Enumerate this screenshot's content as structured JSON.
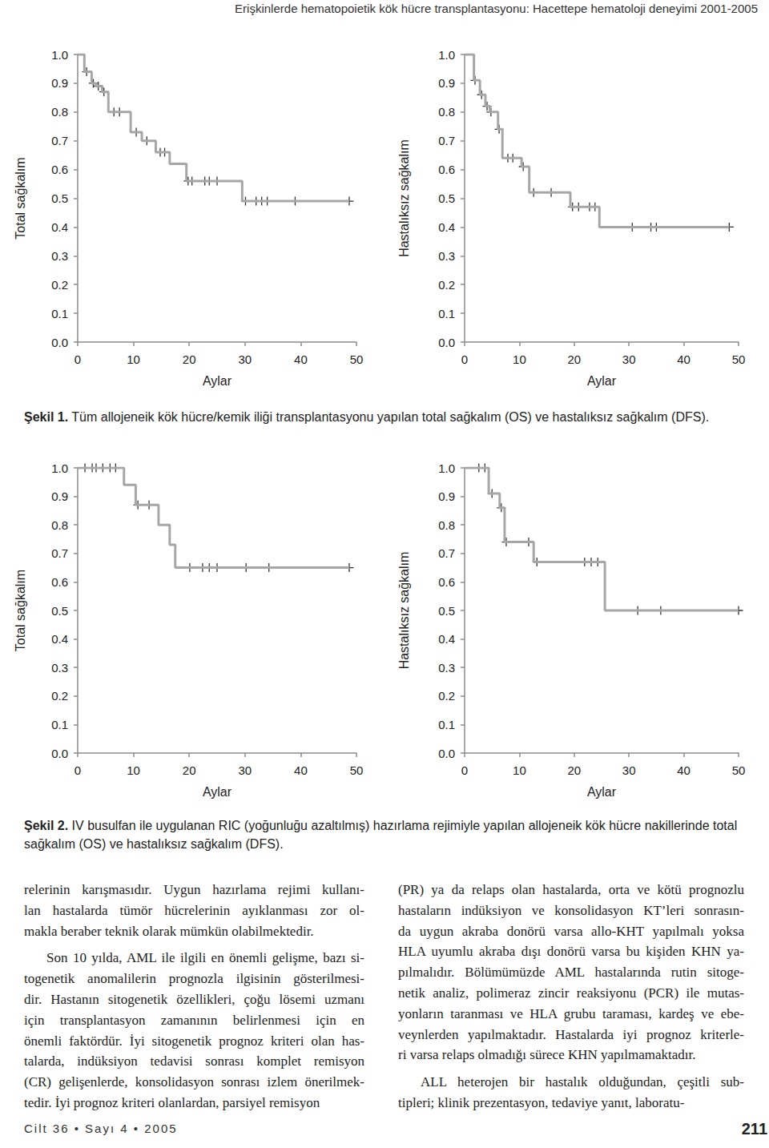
{
  "header": "Erişkinlerde hematopoietik kök hücre transplantasyonu: Hacettepe hematoloji deneyimi 2001-2005",
  "chart_data": [
    {
      "type": "step",
      "ylabel": "Total sağkalım",
      "xlabel": "Aylar",
      "xlim": [
        0,
        50
      ],
      "xticks": [
        0,
        10,
        20,
        30,
        40,
        50
      ],
      "ylim": [
        0,
        1
      ],
      "yticks": [
        {
          "value": 0,
          "label": "0.0"
        },
        0.1,
        0.2,
        0.3,
        0.4,
        0.5,
        0.6,
        0.7,
        0.8,
        0.9,
        {
          "value": 1,
          "label": "1.0"
        }
      ],
      "grid": false,
      "series": [
        {
          "type": "line",
          "marker": "none",
          "line_style": "solid",
          "color": "#a6a6a6",
          "x": [
            0,
            1.2,
            2.5,
            3.3,
            4.4,
            5.5,
            9.5,
            11.5,
            14,
            16.5,
            19.5,
            29.5,
            48.7
          ],
          "values": [
            1,
            0.94,
            0.9,
            0.89,
            0.87,
            0.8,
            0.73,
            0.7,
            0.66,
            0.62,
            0.56,
            0.49,
            0.49
          ]
        },
        {
          "type": "scatter",
          "marker": "plus",
          "color": "#000000",
          "x": [
            1.6,
            2.8,
            3.7,
            4.7,
            6.5,
            7.5,
            10.5,
            12.4,
            14.8,
            15.6,
            19.8,
            20.5,
            22.8,
            23.6,
            25,
            30.1,
            32,
            33,
            34,
            39,
            48.7
          ],
          "values": [
            0.94,
            0.9,
            0.89,
            0.87,
            0.8,
            0.8,
            0.73,
            0.7,
            0.66,
            0.66,
            0.56,
            0.56,
            0.56,
            0.56,
            0.56,
            0.49,
            0.49,
            0.49,
            0.49,
            0.49,
            0.49
          ]
        }
      ]
    },
    {
      "type": "step",
      "ylabel": "Hastalıksız sağkalım",
      "xlabel": "Aylar",
      "xlim": [
        0,
        50
      ],
      "xticks": [
        0,
        10,
        20,
        30,
        40,
        50
      ],
      "ylim": [
        0,
        1
      ],
      "yticks": [
        {
          "value": 0,
          "label": "0.0"
        },
        0.1,
        0.2,
        0.3,
        0.4,
        0.5,
        0.6,
        0.7,
        0.8,
        0.9,
        {
          "value": 1,
          "label": "1.0"
        }
      ],
      "grid": false,
      "series": [
        {
          "type": "line",
          "marker": "none",
          "line_style": "solid",
          "color": "#a6a6a6",
          "x": [
            0,
            1.7,
            2.8,
            3.8,
            4.6,
            6.1,
            6.9,
            10.4,
            11.8,
            19.3,
            24.6,
            48.3
          ],
          "values": [
            1,
            0.91,
            0.86,
            0.82,
            0.8,
            0.74,
            0.64,
            0.61,
            0.52,
            0.47,
            0.4,
            0.4
          ]
        },
        {
          "type": "scatter",
          "marker": "plus",
          "color": "#000000",
          "x": [
            1.9,
            3.1,
            4.1,
            4.8,
            6.3,
            7.9,
            8.8,
            10.7,
            12.6,
            15.8,
            19.7,
            20.8,
            22.8,
            23.8,
            30.6,
            34,
            35,
            48.3
          ],
          "values": [
            0.91,
            0.86,
            0.82,
            0.8,
            0.74,
            0.64,
            0.64,
            0.61,
            0.52,
            0.52,
            0.47,
            0.47,
            0.47,
            0.47,
            0.4,
            0.4,
            0.4,
            0.4
          ]
        }
      ]
    },
    {
      "type": "step",
      "ylabel": "Total sağkalım",
      "xlabel": "Aylar",
      "xlim": [
        0,
        50
      ],
      "xticks": [
        0,
        10,
        20,
        30,
        40,
        50
      ],
      "ylim": [
        0,
        1
      ],
      "yticks": [
        {
          "value": 0,
          "label": "0.0"
        },
        0.1,
        0.2,
        0.3,
        0.4,
        0.5,
        0.6,
        0.7,
        0.8,
        0.9,
        {
          "value": 1,
          "label": "1.0"
        }
      ],
      "grid": false,
      "series": [
        {
          "type": "line",
          "marker": "none",
          "line_style": "solid",
          "color": "#a6a6a6",
          "x": [
            0,
            8.3,
            10.4,
            14.5,
            16.5,
            17.5,
            48.7
          ],
          "values": [
            1,
            0.94,
            0.87,
            0.8,
            0.73,
            0.65,
            0.65
          ]
        },
        {
          "type": "scatter",
          "marker": "plus",
          "color": "#000000",
          "x": [
            1.3,
            2.6,
            3.3,
            4.5,
            5.8,
            6.8,
            10.8,
            12.8,
            20.1,
            22.4,
            23.6,
            25,
            30.2,
            34.3,
            48.7
          ],
          "values": [
            1,
            1,
            1,
            1,
            1,
            1,
            0.87,
            0.87,
            0.65,
            0.65,
            0.65,
            0.65,
            0.65,
            0.65,
            0.65
          ]
        }
      ]
    },
    {
      "type": "step",
      "ylabel": "Hastalıksız sağkalım",
      "xlabel": "Aylar",
      "xlim": [
        0,
        50
      ],
      "xticks": [
        0,
        10,
        20,
        30,
        40,
        50
      ],
      "ylim": [
        0,
        1
      ],
      "yticks": [
        {
          "value": 0,
          "label": "0.0"
        },
        0.1,
        0.2,
        0.3,
        0.4,
        0.5,
        0.6,
        0.7,
        0.8,
        0.9,
        {
          "value": 1,
          "label": "1.0"
        }
      ],
      "grid": false,
      "series": [
        {
          "type": "line",
          "marker": "none",
          "line_style": "solid",
          "color": "#a6a6a6",
          "x": [
            0,
            4.4,
            6.4,
            7.3,
            12.6,
            25.6,
            50
          ],
          "values": [
            1,
            0.91,
            0.86,
            0.74,
            0.67,
            0.5,
            0.5
          ]
        },
        {
          "type": "scatter",
          "marker": "plus",
          "color": "#000000",
          "x": [
            2.6,
            3.7,
            5,
            6.7,
            7.6,
            11.7,
            13.2,
            21.9,
            23.1,
            24.3,
            31.6,
            35.8,
            50
          ],
          "values": [
            1,
            1,
            0.91,
            0.86,
            0.74,
            0.74,
            0.67,
            0.67,
            0.67,
            0.67,
            0.5,
            0.5,
            0.5
          ]
        }
      ]
    }
  ],
  "captions": [
    {
      "label": "Şekil 1.",
      "text": "Tüm allojeneik kök hücre/kemik iliği transplantasyonu yapılan total sağkalım (OS) ve hastalıksız sağkalım (DFS)."
    },
    {
      "label": "Şekil 2.",
      "text": "IV busulfan ile uygulanan RIC (yoğunluğu azaltılmış) hazırlama rejimiyle yapılan allojeneik kök hücre nakillerinde total sağkalım (OS) ve hastalıksız sağkalım (DFS)."
    }
  ],
  "body": {
    "left": [
      [
        "relerinin karışmasıdır. Uygun hazırlama rejimi kullanı-",
        "lan hastalarda tümör hücrelerinin ayıklanması zor ol-",
        "makla beraber teknik olarak mümkün olabilmektedir."
      ],
      [
        "Son 10 yılda, AML ile ilgili en önemli gelişme, bazı si-",
        "togenetik anomalilerin prognozla ilgisinin gösterilmesi-",
        "dir. Hastanın sitogenetik özellikleri, çoğu lösemi uzmanı",
        "için transplantasyon zamanının belirlenmesi için en",
        "önemli faktördür. İyi sitogenetik prognoz kriteri olan has-",
        "talarda, indüksiyon tedavisi sonrası komplet remisyon",
        "(CR) gelişenlerde, konsolidasyon sonrası izlem önerilmek-",
        "tedir. İyi prognoz kriteri olanlardan, parsiyel remisyon"
      ]
    ],
    "right": [
      [
        "(PR) ya da relaps olan hastalarda, orta ve kötü prognozlu",
        "hastaların indüksiyon ve konsolidasyon KT’leri sonrasın-",
        "da uygun akraba donörü varsa allo-KHT yapılmalı yoksa",
        "HLA uyumlu akraba dışı donörü varsa bu kişiden KHN ya-",
        "pılmalıdır. Bölümümüzde AML hastalarında rutin sitoge-",
        "netik analiz, polimeraz zincir reaksiyonu (PCR) ile mutas-",
        "yonların taranması ve HLA grubu taraması, kardeş ve ebe-",
        "veynlerden yapılmaktadır. Hastalarda iyi prognoz kriterle-",
        "ri varsa relaps olmadığı sürece KHN yapılmamaktadır."
      ],
      [
        "ALL heterojen bir hastalık olduğundan, çeşitli sub-",
        "tipleri; klinik prezentasyon, tedaviye yanıt, laboratu-"
      ]
    ]
  },
  "footer": {
    "left": "Cilt 36 • Sayı 4 • 2005",
    "right": "211"
  }
}
